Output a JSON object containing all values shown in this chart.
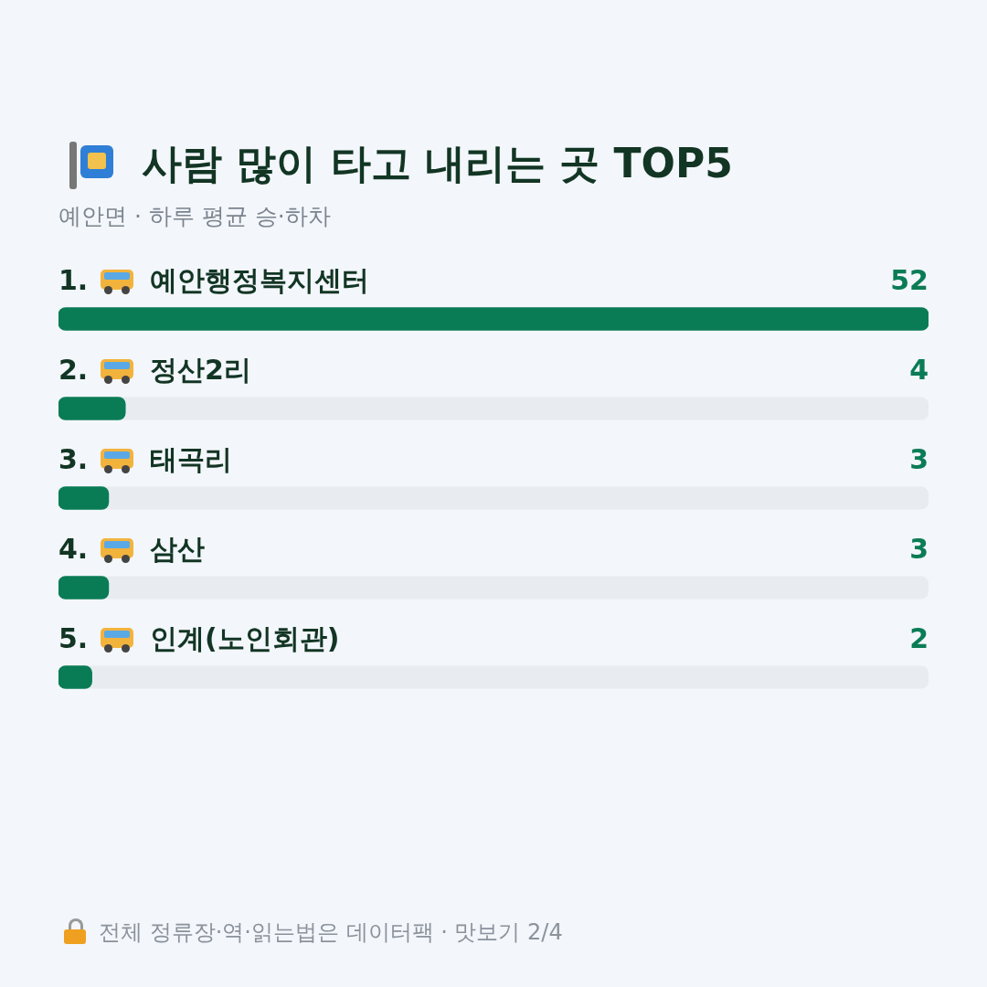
{
  "chart_data": {
    "type": "bar",
    "orientation": "horizontal",
    "title": "사람 많이 타고 내리는 곳 TOP5",
    "subtitle": "예안면 · 하루 평균 승·하차",
    "categories": [
      "1. 예안행정복지센터",
      "2. 정산2리",
      "3. 태곡리",
      "4. 삼산",
      "5. 인계(노인회관)"
    ],
    "values": [
      52,
      4,
      3,
      3,
      2
    ],
    "color": "#0a7c55",
    "data_labels": true,
    "annotations": [
      "전체 정류장·역·읽는법은 데이터팩 · 맛보기 2/4"
    ]
  }
}
